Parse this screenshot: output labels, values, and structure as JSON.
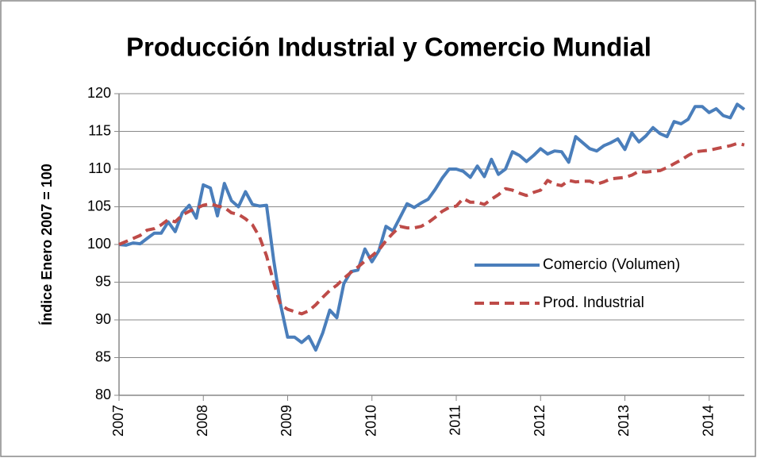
{
  "chart_data": {
    "type": "line",
    "title": "Producción Industrial y Comercio Mundial",
    "y_label": "Índice Enero 2007 = 100",
    "categories": [
      "2007",
      null,
      null,
      null,
      null,
      null,
      null,
      null,
      null,
      null,
      null,
      null,
      "2008",
      null,
      null,
      null,
      null,
      null,
      null,
      null,
      null,
      null,
      null,
      null,
      "2009",
      null,
      null,
      null,
      null,
      null,
      null,
      null,
      null,
      null,
      null,
      null,
      "2010",
      null,
      null,
      null,
      null,
      null,
      null,
      null,
      null,
      null,
      null,
      null,
      "2011",
      null,
      null,
      null,
      null,
      null,
      null,
      null,
      null,
      null,
      null,
      null,
      "2012",
      null,
      null,
      null,
      null,
      null,
      null,
      null,
      null,
      null,
      null,
      null,
      "2013",
      null,
      null,
      null,
      null,
      null,
      null,
      null,
      null,
      null,
      null,
      null,
      "2014",
      null,
      null,
      null,
      null,
      null
    ],
    "series": [
      {
        "name": "Comercio (Volumen)",
        "color": "#4a7ebb",
        "dashed": false,
        "values": [
          100,
          99.9,
          100.2,
          100.1,
          100.8,
          101.5,
          101.5,
          103,
          101.7,
          104.2,
          105.2,
          103.5,
          107.9,
          107.5,
          103.8,
          108.1,
          105.8,
          105,
          107,
          105.3,
          105.1,
          105.2,
          98,
          92,
          87.7,
          87.7,
          87,
          87.8,
          86,
          88.3,
          91.3,
          90.3,
          94.8,
          96.4,
          96.6,
          99.4,
          97.7,
          99.2,
          102.4,
          101.8,
          103.6,
          105.4,
          104.9,
          105.5,
          106,
          107.3,
          108.8,
          110,
          110,
          109.7,
          108.9,
          110.4,
          109,
          111.3,
          109.3,
          110,
          112.3,
          111.8,
          111,
          111.8,
          112.7,
          112,
          112.4,
          112.3,
          110.9,
          114.3,
          113.5,
          112.7,
          112.4,
          113.1,
          113.5,
          114,
          112.6,
          114.8,
          113.6,
          114.4,
          115.5,
          114.7,
          114.3,
          116.3,
          116,
          116.6,
          118.3,
          118.3,
          117.5,
          118,
          117.1,
          116.8,
          118.6,
          117.9
        ]
      },
      {
        "name": "Prod. Industrial",
        "color": "#be4b48",
        "dashed": true,
        "values": [
          100,
          100.4,
          100.8,
          101.2,
          101.9,
          102.1,
          102.6,
          103.3,
          103,
          103.9,
          104.4,
          104.8,
          105.2,
          105.4,
          105.1,
          104.9,
          104.2,
          104,
          103.4,
          102.6,
          101,
          98.5,
          95,
          92,
          91.4,
          91.1,
          90.8,
          91.2,
          92,
          93,
          93.9,
          94.6,
          95.5,
          96.3,
          97,
          97.8,
          98.5,
          99.3,
          100.5,
          101.5,
          102.4,
          102.2,
          102.2,
          102.4,
          102.9,
          103.6,
          104.4,
          104.9,
          105.1,
          106.1,
          105.6,
          105.6,
          105.3,
          106,
          106.6,
          107.4,
          107.2,
          106.8,
          106.5,
          106.9,
          107.2,
          108.5,
          108,
          107.8,
          108.5,
          108.3,
          108.4,
          108.4,
          108,
          108.3,
          108.7,
          108.8,
          108.9,
          109.2,
          109.7,
          109.6,
          109.7,
          109.8,
          110.2,
          110.7,
          111.2,
          111.8,
          112.3,
          112.4,
          112.5,
          112.7,
          112.9,
          113.1,
          113.4,
          113.2
        ]
      }
    ],
    "ylim": [
      80,
      120
    ],
    "yticks": [
      80,
      85,
      90,
      95,
      100,
      105,
      110,
      115,
      120
    ],
    "grid": true,
    "legend": "right"
  }
}
